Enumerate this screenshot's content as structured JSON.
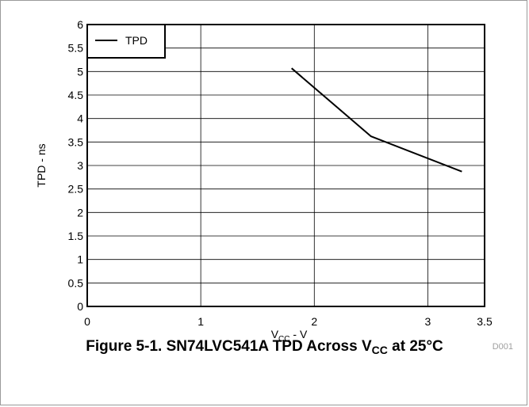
{
  "caption": {
    "prefix": "Figure 5-1. SN74LVC541A TPD Across V",
    "sub": "CC",
    "suffix": " at 25°C"
  },
  "figure_code": "D001",
  "chart_data": {
    "type": "line",
    "title": "",
    "xlabel": {
      "main": "V",
      "sub": "CC",
      "suffix": " - V"
    },
    "ylabel": "TPD - ns",
    "xlim": [
      0,
      3.5
    ],
    "ylim": [
      0,
      6
    ],
    "x_ticks": [
      "0",
      "1",
      "2",
      "3",
      "3.5"
    ],
    "x_tick_values": [
      0,
      1,
      2,
      3,
      3.5
    ],
    "y_ticks": [
      "0",
      "0.5",
      "1",
      "1.5",
      "2",
      "2.5",
      "3",
      "3.5",
      "4",
      "4.5",
      "5",
      "5.5",
      "6"
    ],
    "y_tick_values": [
      0,
      0.5,
      1,
      1.5,
      2,
      2.5,
      3,
      3.5,
      4,
      4.5,
      5,
      5.5,
      6
    ],
    "grid": true,
    "legend_position": "top-left",
    "series": [
      {
        "name": "TPD",
        "color": "#000000",
        "x": [
          1.8,
          2.5,
          3.3
        ],
        "y": [
          5.07,
          3.62,
          2.87
        ]
      }
    ]
  }
}
